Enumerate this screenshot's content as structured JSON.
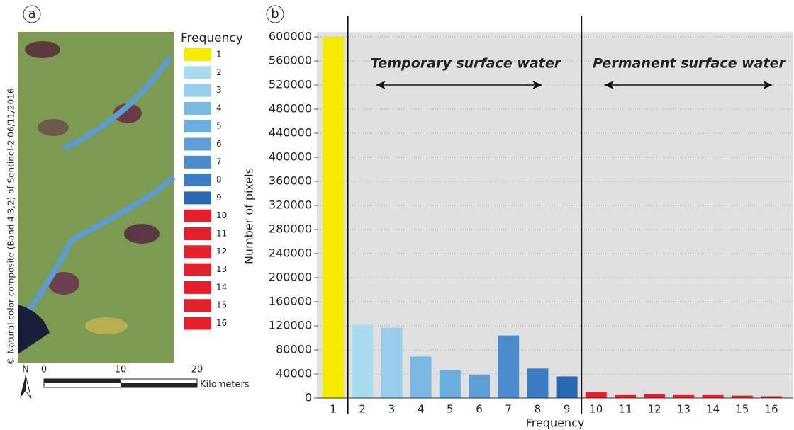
{
  "chart_data": {
    "type": "bar",
    "panel_label": "b",
    "categories": [
      "1",
      "2",
      "3",
      "4",
      "5",
      "6",
      "7",
      "8",
      "9",
      "10",
      "11",
      "12",
      "13",
      "14",
      "15",
      "16"
    ],
    "values": [
      600000,
      122000,
      117000,
      69000,
      46000,
      39000,
      104000,
      49000,
      36000,
      10000,
      6000,
      7000,
      6000,
      6000,
      4000,
      3000
    ],
    "colors": [
      "#f5ea00",
      "#a9dcef",
      "#98cdeb",
      "#7ab8e4",
      "#6aaee0",
      "#5e9fd8",
      "#4c8ccd",
      "#3c7cc4",
      "#2a68b4",
      "#e3202c",
      "#e3202c",
      "#e3202c",
      "#e3202c",
      "#e3202c",
      "#e3202c",
      "#e3202c"
    ],
    "ylim": [
      0,
      600000
    ],
    "yticks": [
      0,
      40000,
      80000,
      120000,
      160000,
      200000,
      240000,
      280000,
      320000,
      360000,
      400000,
      440000,
      480000,
      520000,
      560000,
      600000
    ],
    "grid": true,
    "x_label": "Frequency",
    "y_label": "Number of pixels",
    "legend_title": "Frequency",
    "annotations": [
      {
        "text": "Temporary surface water"
      },
      {
        "text": "Permanent surface water"
      }
    ]
  },
  "map": {
    "panel_label": "a",
    "north": "N",
    "scale_labels": [
      "0",
      "10",
      "20"
    ],
    "scale_unit": "Kilometers",
    "credit": "© Natural color composite (Band 4,3,2) of Sentinel-2 06/11/2016"
  }
}
